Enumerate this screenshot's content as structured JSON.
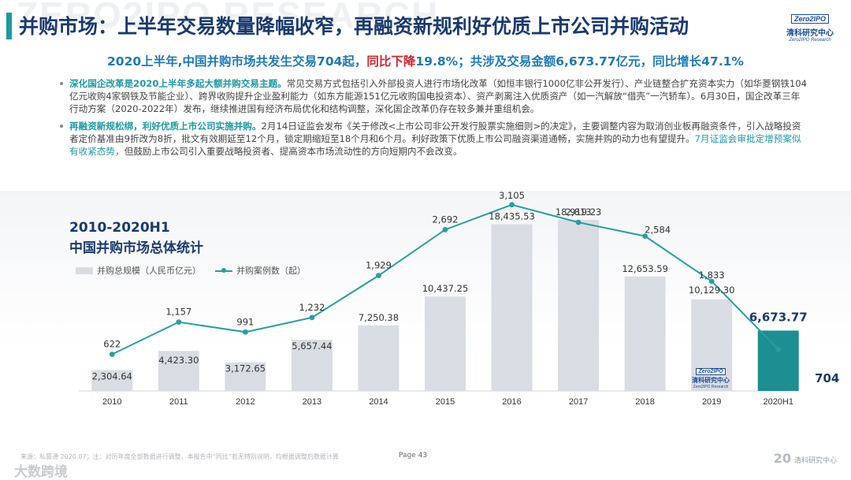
{
  "watermark": "ZERO2IPO RESEARCH",
  "title": "并购市场：上半年交易数量降幅收窄，再融资新规利好优质上市公司并购活动",
  "logo": {
    "mark": "Zero2IPO",
    "cn": "清科研究中心",
    "en": "Zero2IPO Research"
  },
  "headline": {
    "part1": "2020上半年,中国并购市场共发生交易704起，",
    "part2": "同比下降",
    "part3": "19.8%；共涉及交易金额6,673.77亿元，同比增长47.1%"
  },
  "bullets": [
    {
      "lead": "深化国企改革是2020上半年多起大额并购交易主题。",
      "text": "常见交易方式包括引入外部投资人进行市场化改革（如恒丰银行1000亿非公开发行）、产业链整合扩充资本实力（如华菱钢铁104亿元收购4家钢铁及节能企业）、跨界收购提升企业盈利能力（如东方能源151亿元收购国电投资本）、资产剥离注入优质资产（如一汽解放“借壳”一汽轿车）。6月30日，国企改革三年行动方案（2020-2022年）发布，继续推进国有经济布局优化和结构调整，深化国企改革仍存在较多兼并重组机会。",
      "tail_hl": "",
      "tail": ""
    },
    {
      "lead": "再融资新规松绑，利好优质上市公司实施并购。",
      "text": "2月14日证监会发布《关于修改<上市公司非公开发行股票实施细则>的决定》，主要调整内容为取消创业板再融资条件，引入战略投资者定价基准由9折改为8折，批文有效期延至12个月，锁定期缩短至18个月和6个月。利好政策下优质上市公司融资渠道通畅，实施并购的动力也有望提升。",
      "tail_hl": "7月证监会审批定增预案似有收紧态势，",
      "tail": "但鼓励上市公司引入重要战略投资者、提高资本市场流动性的方向短期内不会改变。"
    }
  ],
  "chart_title_line1": "2010-2020H1",
  "chart_title_line2": "中国并购市场总体统计",
  "legend": {
    "bar": "并购总规模（人民币亿元）",
    "line": "并购案例数（起）"
  },
  "chart_logo": {
    "mark": "Zero2IPO",
    "cn": "清科研究中心",
    "en": "Zero2IPO Research"
  },
  "chart_data": {
    "type": "bar",
    "title": "2010-2020H1 中国并购市场总体统计",
    "categories": [
      "2010",
      "2011",
      "2012",
      "2013",
      "2014",
      "2015",
      "2016",
      "2017",
      "2018",
      "2019",
      "2020H1"
    ],
    "series": [
      {
        "name": "并购总规模（人民币亿元）",
        "type": "bar",
        "values": [
          2304.64,
          4423.3,
          3172.65,
          5657.44,
          7250.38,
          10437.25,
          18435.53,
          18919.23,
          12653.59,
          10129.3,
          6673.77
        ],
        "labels": [
          "2,304.64",
          "4,423.30",
          "3,172.65",
          "5,657.44",
          "7,250.38",
          "10,437.25",
          "18,435.53",
          "18,919.23",
          "12,653.59",
          "10,129.30",
          "6,673.77"
        ],
        "color": "#d9dde3",
        "highlight_color": "#1b8f91"
      },
      {
        "name": "并购案例数（起）",
        "type": "line",
        "values": [
          622,
          1157,
          991,
          1232,
          1929,
          2692,
          3105,
          2813,
          2584,
          1833,
          704
        ],
        "labels": [
          "622",
          "1,157",
          "991",
          "1,232",
          "1,929",
          "2,692",
          "3,105",
          "2,813",
          "2,584",
          "1,833",
          "704"
        ],
        "color": "#2a9d9f"
      }
    ],
    "ylim_bar": [
      0,
      19000
    ],
    "ylim_line": [
      0,
      3600
    ],
    "xlabel": "",
    "ylabel": ""
  },
  "footer": {
    "note": "来源：私募通 2020.07；注：对历年度全部数据进行调整，本报告中“同比”若无特别说明，均根据调整后数据计算",
    "page_label": "Page 43",
    "brand_mark": "大数跨境",
    "brand_year": "20",
    "brand_text": "清科研究中心"
  }
}
